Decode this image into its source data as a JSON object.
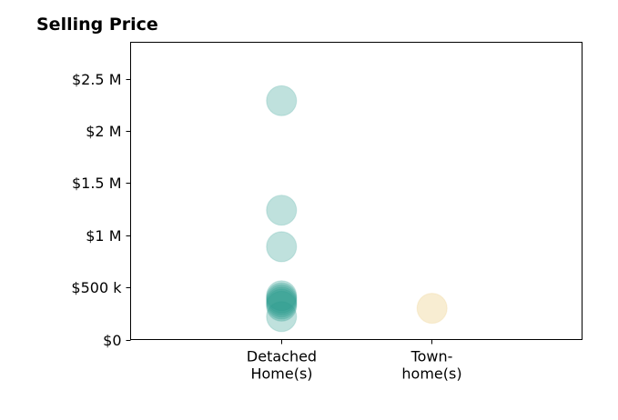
{
  "chart_data": {
    "type": "scatter",
    "title": "Selling Price",
    "xlabel": "",
    "ylabel": "",
    "categories": [
      {
        "lines": [
          "Detached",
          "Home(s)"
        ]
      },
      {
        "lines": [
          "Town-",
          "home(s)"
        ]
      }
    ],
    "x_range": [
      -1,
      2
    ],
    "ylim": [
      0,
      2850000
    ],
    "y_ticks": [
      {
        "value": 0,
        "label": "$0"
      },
      {
        "value": 500000,
        "label": "$500 k"
      },
      {
        "value": 1000000,
        "label": "$1 M"
      },
      {
        "value": 1500000,
        "label": "$1.5 M"
      },
      {
        "value": 2000000,
        "label": "$2 M"
      },
      {
        "value": 2500000,
        "label": "$2.5 M"
      }
    ],
    "grid": false,
    "legend": "none",
    "series": [
      {
        "category_index": 0,
        "color": "#2a9d8f",
        "values": [
          2290000,
          1240000,
          890000,
          420000,
          400000,
          380000,
          360000,
          340000,
          320000,
          220000
        ]
      },
      {
        "category_index": 1,
        "color": "#e9c46a",
        "values": [
          300000
        ]
      }
    ]
  }
}
